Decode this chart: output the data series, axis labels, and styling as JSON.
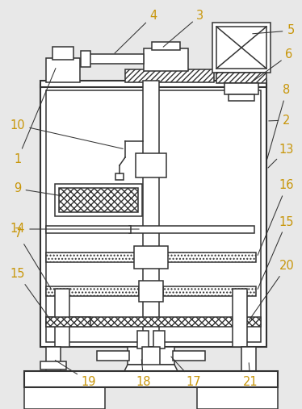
{
  "bg_color": "#e8e8e8",
  "fc": "white",
  "lc": "#333333",
  "lc2": "#555555",
  "label_color": "#c8960a",
  "lw": 1.1,
  "lw2": 1.5,
  "label_fs": 10.5,
  "annot_lw": 0.75
}
